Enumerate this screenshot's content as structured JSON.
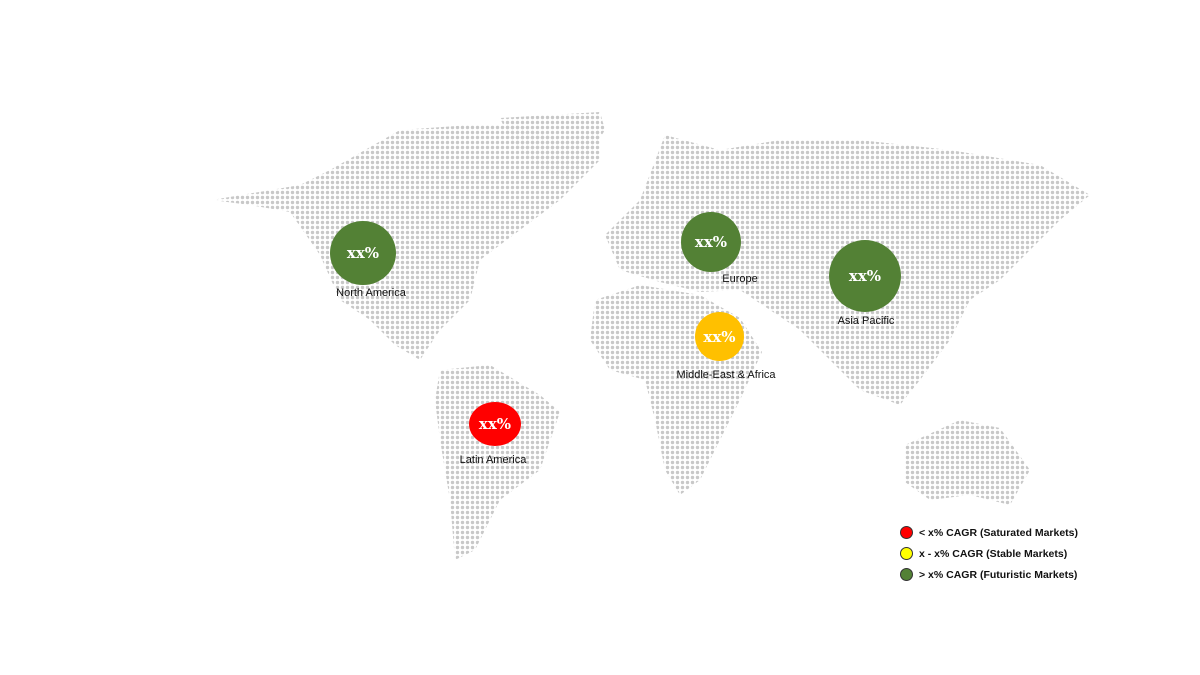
{
  "regions": [
    {
      "name": "North America",
      "value": "xx%",
      "color": "#538135"
    },
    {
      "name": "Europe",
      "value": "xx%",
      "color": "#538135"
    },
    {
      "name": "Asia Pacific",
      "value": "xx%",
      "color": "#538135"
    },
    {
      "name": "Middle-East & Africa",
      "value": "xx%",
      "color": "#FFC000"
    },
    {
      "name": "Latin America",
      "value": "xx%",
      "color": "#FF0000"
    }
  ],
  "legend": [
    {
      "label": "< x% CAGR (Saturated Markets)",
      "color": "#FF0000"
    },
    {
      "label": "x - x% CAGR (Stable Markets)",
      "color": "#FFFF00"
    },
    {
      "label": "> x% CAGR (Futuristic Markets)",
      "color": "#538135"
    }
  ]
}
